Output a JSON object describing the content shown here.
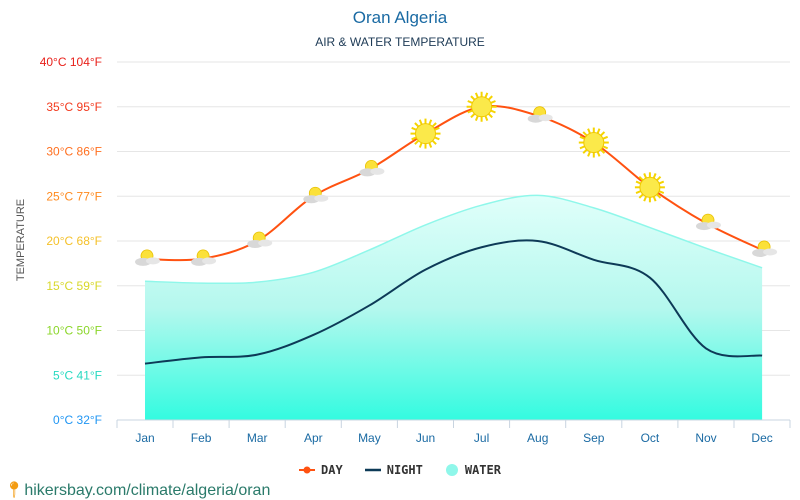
{
  "chart_data": {
    "type": "line",
    "title": "Oran Algeria",
    "subtitle": "AIR & WATER TEMPERATURE",
    "ylabel": "TEMPERATURE",
    "categories": [
      "Jan",
      "Feb",
      "Mar",
      "Apr",
      "May",
      "Jun",
      "Jul",
      "Aug",
      "Sep",
      "Oct",
      "Nov",
      "Dec"
    ],
    "ylim": [
      0,
      40
    ],
    "yticks": [
      {
        "c": 0,
        "label": "0°C 32°F",
        "color": "#2196f3"
      },
      {
        "c": 5,
        "label": "5°C 41°F",
        "color": "#26d9c0"
      },
      {
        "c": 10,
        "label": "10°C 50°F",
        "color": "#8bd62a"
      },
      {
        "c": 15,
        "label": "15°C 59°F",
        "color": "#d8d82a"
      },
      {
        "c": 20,
        "label": "20°C 68°F",
        "color": "#f5c12a"
      },
      {
        "c": 25,
        "label": "25°C 77°F",
        "color": "#ff8a1e"
      },
      {
        "c": 30,
        "label": "30°C 86°F",
        "color": "#ff7020"
      },
      {
        "c": 35,
        "label": "35°C 95°F",
        "color": "#f23a1e"
      },
      {
        "c": 40,
        "label": "40°C 104°F",
        "color": "#e8201a"
      }
    ],
    "grid": true,
    "legend_position": "bottom",
    "series": [
      {
        "name": "DAY",
        "color": "#ff5211",
        "values": [
          18,
          18,
          20,
          25,
          28,
          32,
          35,
          34,
          31,
          26,
          22,
          19
        ]
      },
      {
        "name": "NIGHT",
        "color": "#0d3a57",
        "values": [
          6.3,
          7,
          7.3,
          9.5,
          12.8,
          16.8,
          19.3,
          20,
          17.9,
          15.9,
          8,
          7.2
        ]
      },
      {
        "name": "WATER",
        "color": "#8ff7ea",
        "type": "area",
        "values": [
          15.5,
          15.3,
          15.4,
          16.5,
          19,
          21.8,
          24,
          25.1,
          23.7,
          21.5,
          19.2,
          17
        ]
      }
    ],
    "weather_icons": [
      "partly-cloudy",
      "partly-cloudy",
      "partly-cloudy",
      "partly-cloudy",
      "partly-cloudy",
      "sunny",
      "sunny",
      "partly-cloudy",
      "sunny",
      "sunny",
      "partly-cloudy",
      "partly-cloudy"
    ]
  },
  "source": "hikersbay.com/climate/algeria/oran"
}
